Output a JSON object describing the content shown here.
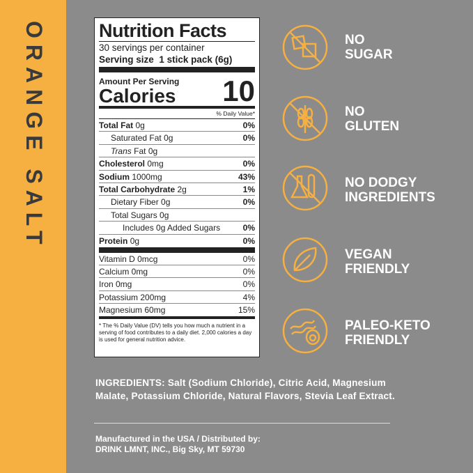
{
  "side_label": "ORANGE SALT",
  "nutrition": {
    "title": "Nutrition Facts",
    "servings": "30 servings per container",
    "serving_size_label": "Serving size",
    "serving_size": "1 stick pack (6g)",
    "amount_per_serving": "Amount Per Serving",
    "calories_label": "Calories",
    "calories": "10",
    "dv_header": "% Daily Value*",
    "rows": [
      {
        "name": "Total Fat",
        "amount": "0g",
        "dv": "0%"
      },
      {
        "name": "Saturated Fat",
        "amount": "0g",
        "dv": "0%"
      },
      {
        "name_italic": "Trans",
        "name": "Fat",
        "amount": "0g"
      },
      {
        "name": "Cholesterol",
        "amount": "0mg",
        "dv": "0%"
      },
      {
        "name": "Sodium",
        "amount": "1000mg",
        "dv": "43%"
      },
      {
        "name": "Total Carbohydrate",
        "amount": "2g",
        "dv": "1%"
      },
      {
        "name": "Dietary Fiber",
        "amount": "0g",
        "dv": "0%"
      },
      {
        "name": "Total Sugars",
        "amount": "0g"
      },
      {
        "name": "Includes 0g Added Sugars",
        "dv": "0%"
      },
      {
        "name": "Protein",
        "amount": "0g",
        "dv": "0%"
      }
    ],
    "vitamins": [
      {
        "name": "Vitamin D 0mcg",
        "dv": "0%"
      },
      {
        "name": "Calcium 0mg",
        "dv": "0%"
      },
      {
        "name": "Iron 0mg",
        "dv": "0%"
      },
      {
        "name": "Potassium 200mg",
        "dv": "4%"
      },
      {
        "name": "Magnesium 60mg",
        "dv": "15%"
      }
    ],
    "footnote": "* The % Daily Value (DV) tells you how much a nutrient in a serving of food contributes to a daily diet. 2,000 calories a day is used for general nutrition advice."
  },
  "claims": [
    {
      "lines": [
        "NO",
        "SUGAR"
      ]
    },
    {
      "lines": [
        "NO",
        "GLUTEN"
      ]
    },
    {
      "lines": [
        "NO DODGY",
        "INGREDIENTS"
      ]
    },
    {
      "lines": [
        "VEGAN",
        "FRIENDLY"
      ]
    },
    {
      "lines": [
        "PALEO-KETO",
        "FRIENDLY"
      ]
    }
  ],
  "ingredients": {
    "label": "INGREDIENTS:",
    "text": "Salt (Sodium Chloride), Citric Acid, Magnesium Malate, Potassium Chloride, Natural Flavors, Stevia Leaf Extract."
  },
  "footer": [
    "Manufactured in the USA / Distributed by:",
    "DRINK LMNT, INC., Big Sky, MT 59730"
  ]
}
